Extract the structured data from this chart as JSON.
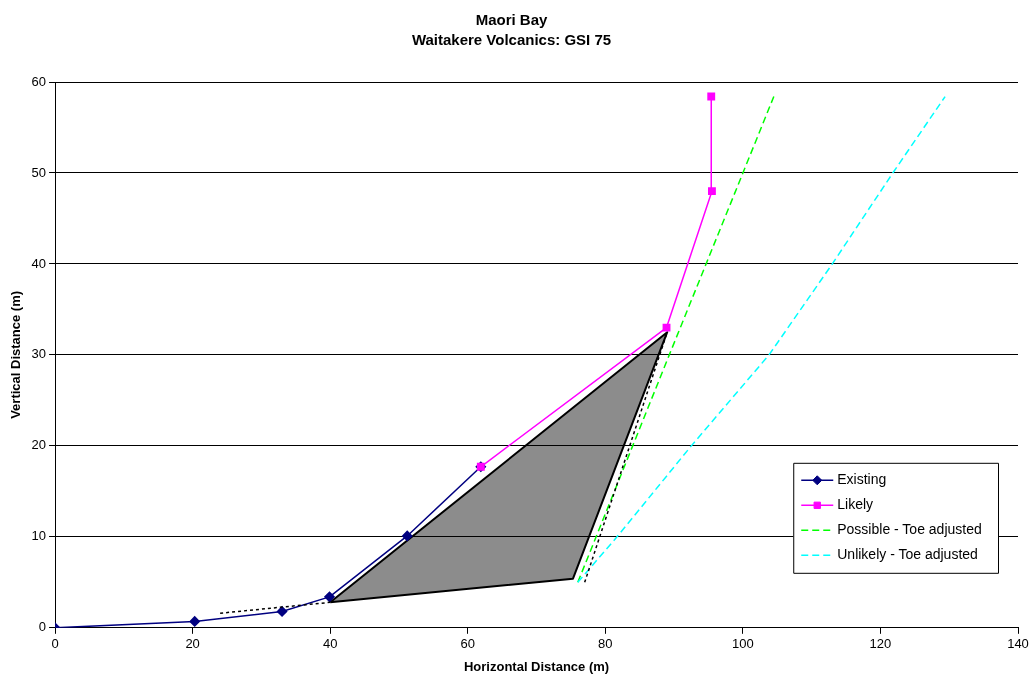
{
  "chart_data": {
    "type": "line",
    "title": "Maori Bay",
    "subtitle": "Waitakere Volcanics: GSI 75",
    "xlabel": "Horizontal Distance (m)",
    "ylabel": "Vertical Distance (m)",
    "xlim": [
      0,
      140
    ],
    "xticks": [
      0,
      20,
      40,
      60,
      80,
      100,
      120,
      140
    ],
    "ylim": [
      0,
      60
    ],
    "yticks": [
      0,
      10,
      20,
      30,
      40,
      50,
      60
    ],
    "grid": "y",
    "legend": "bottom right",
    "series": [
      {
        "type": "area",
        "color": "#000000",
        "x": [
          40,
          75.3,
          89,
          40
        ],
        "values": [
          2.8,
          5.4,
          32.5,
          2.8
        ],
        "marker": "none"
      },
      {
        "name": "Existing",
        "type": "line",
        "color": "#000080",
        "x": [
          0,
          20.3,
          33,
          39.9,
          51.2,
          61.9
        ],
        "values": [
          0,
          0.7,
          1.8,
          3.4,
          10.1,
          17.7
        ],
        "marker": "diamond",
        "line_style": "solid"
      },
      {
        "name": "Likely",
        "type": "line",
        "color": "#ff00ff",
        "x": [
          61.9,
          88.9,
          95.5,
          95.4
        ],
        "values": [
          17.7,
          33,
          48,
          58.4
        ],
        "marker": "square",
        "line_style": "solid"
      },
      {
        "name": "Possible - Toe adjusted",
        "type": "line",
        "color": "#00ff00",
        "x": [
          76,
          89.3,
          104.5
        ],
        "values": [
          5,
          30,
          58.4
        ],
        "marker": "none",
        "line_style": "dashed"
      },
      {
        "name": "Unlikely - Toe adjusted",
        "type": "line",
        "color": "#00ffff",
        "x": [
          76,
          81.7,
          92.5,
          103.8,
          113,
          121.8,
          129.4
        ],
        "values": [
          5,
          10,
          20,
          30,
          40,
          50,
          58.4
        ],
        "marker": "none",
        "line_style": "dashed"
      },
      {
        "color": "#000000",
        "x": [
          24,
          40
        ],
        "values": [
          1.6,
          2.8
        ],
        "marker": "none",
        "line_style": "dotted"
      },
      {
        "color": "#000000",
        "x": [
          77,
          89
        ],
        "values": [
          5,
          32.5
        ],
        "marker": "none",
        "line_style": "dotted"
      }
    ]
  }
}
